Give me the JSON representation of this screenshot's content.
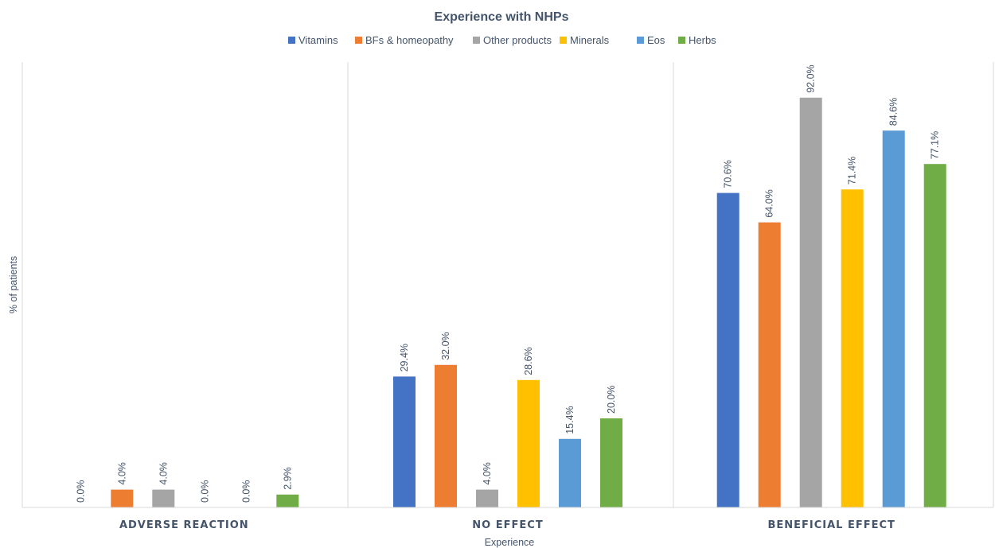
{
  "chart_data": {
    "type": "bar",
    "title": "Experience with NHPs",
    "xlabel": "Experience",
    "ylabel": "% of patients",
    "categories": [
      "ADVERSE REACTION",
      "NO EFFECT",
      "BENEFICIAL EFFECT"
    ],
    "ylim": [
      0,
      100
    ],
    "grid": false,
    "legend_position": "top",
    "series": [
      {
        "name": "Vitamins",
        "color": "#4472c4",
        "values": [
          0.0,
          29.4,
          70.6
        ],
        "labels": [
          "0.0%",
          "29.4%",
          "70.6%"
        ]
      },
      {
        "name": "BFs & homeopathy",
        "color": "#ed7d31",
        "values": [
          4.0,
          32.0,
          64.0
        ],
        "labels": [
          "4.0%",
          "32.0%",
          "64.0%"
        ]
      },
      {
        "name": "Other products",
        "color": "#a5a5a5",
        "values": [
          4.0,
          4.0,
          92.0
        ],
        "labels": [
          "4.0%",
          "4.0%",
          "92.0%"
        ]
      },
      {
        "name": "Minerals",
        "color": "#ffc000",
        "values": [
          0.0,
          28.6,
          71.4
        ],
        "labels": [
          "0.0%",
          "28.6%",
          "71.4%"
        ]
      },
      {
        "name": "Eos",
        "color": "#5b9bd5",
        "values": [
          0.0,
          15.4,
          84.6
        ],
        "labels": [
          "0.0%",
          "15.4%",
          "84.6%"
        ]
      },
      {
        "name": "Herbs",
        "color": "#70ad47",
        "values": [
          2.9,
          20.0,
          77.1
        ],
        "labels": [
          "2.9%",
          "20.0%",
          "77.1%"
        ]
      }
    ]
  }
}
